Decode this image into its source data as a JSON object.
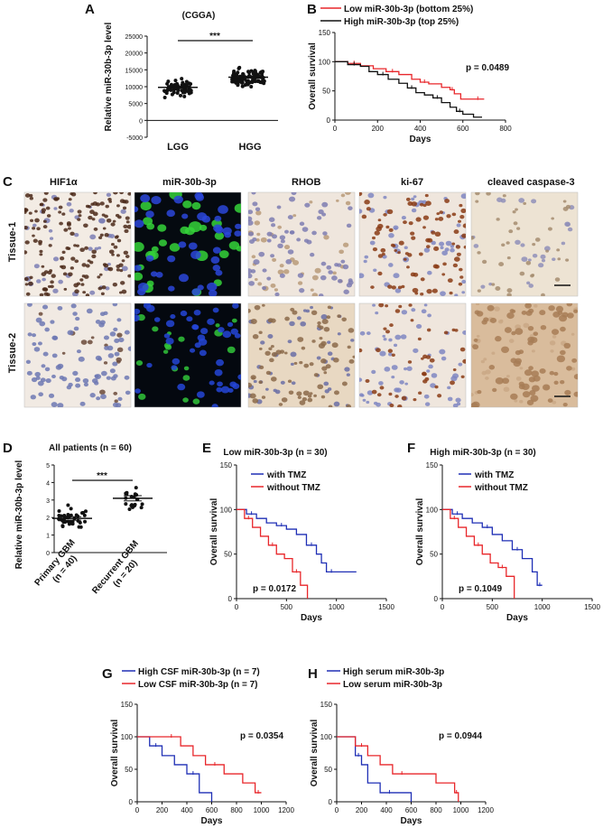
{
  "panel_letters": {
    "A": "A",
    "B": "B",
    "C": "C",
    "D": "D",
    "E": "E",
    "F": "F",
    "G": "G",
    "H": "H"
  },
  "colors": {
    "red": "#e8262a",
    "blue": "#1f2fb5",
    "black": "#111111"
  },
  "panelA": {
    "title": "(CGGA)",
    "ylabel": "Relative miR-30b-3p level",
    "sig": "***",
    "yticks": [
      "25000",
      "20000",
      "15000",
      "10000",
      "5000",
      "0",
      "-5000"
    ],
    "groups": [
      "LGG",
      "HGG"
    ]
  },
  "panelB": {
    "legend": [
      "Low miR-30b-3p (bottom 25%)",
      "High miR-30b-3p (top 25%)"
    ],
    "p": "p = 0.0489",
    "ylabel": "Overall survival",
    "xlabel": "Days",
    "yticks": [
      "0",
      "50",
      "100",
      "150"
    ],
    "xticks": [
      "0",
      "200",
      "400",
      "600",
      "800"
    ]
  },
  "panelC": {
    "columns": [
      "HIF1α",
      "miR-30b-3p",
      "RHOB",
      "ki-67",
      "cleaved caspase-3"
    ],
    "rows": [
      "Tissue-1",
      "Tissue-2"
    ]
  },
  "panelD": {
    "title": "All patients (n = 60)",
    "ylabel": "Relative miR-30b-3p level",
    "sig": "***",
    "yticks": [
      "0",
      "1",
      "2",
      "3",
      "4",
      "5"
    ],
    "groups": [
      [
        "Primary GBM",
        "(n = 40)"
      ],
      [
        "Recurrent GBM",
        "(n = 20)"
      ]
    ]
  },
  "panelE": {
    "title": "Low miR-30b-3p (n = 30)",
    "legend": [
      "with TMZ",
      "without TMZ"
    ],
    "p": "p = 0.0172",
    "ylabel": "Overall survival",
    "xlabel": "Days",
    "yticks": [
      "0",
      "50",
      "100",
      "150"
    ],
    "xticks": [
      "0",
      "500",
      "1000",
      "1500"
    ]
  },
  "panelF": {
    "title": "High miR-30b-3p (n = 30)",
    "legend": [
      "with TMZ",
      "without TMZ"
    ],
    "p": "p = 0.1049",
    "ylabel": "Overall survival",
    "xlabel": "Days",
    "yticks": [
      "0",
      "50",
      "100",
      "150"
    ],
    "xticks": [
      "0",
      "500",
      "1000",
      "1500"
    ]
  },
  "panelG": {
    "legend": [
      "High CSF miR-30b-3p (n = 7)",
      "Low CSF miR-30b-3p (n = 7)"
    ],
    "p": "p = 0.0354",
    "ylabel": "Overall survival",
    "xlabel": "Days",
    "yticks": [
      "0",
      "50",
      "100",
      "150"
    ],
    "xticks": [
      "0",
      "200",
      "400",
      "600",
      "800",
      "1000",
      "1200"
    ]
  },
  "panelH": {
    "legend": [
      "High serum miR-30b-3p",
      "Low serum miR-30b-3p"
    ],
    "p": "p = 0.0944",
    "ylabel": "Overall survival",
    "xlabel": "Days",
    "yticks": [
      "0",
      "50",
      "100",
      "150"
    ],
    "xticks": [
      "0",
      "200",
      "400",
      "600",
      "800",
      "1000",
      "1200"
    ]
  },
  "chart_data": [
    {
      "panel": "A",
      "type": "scatter",
      "title": "(CGGA)",
      "ylabel": "Relative miR-30b-3p level",
      "categories": [
        "LGG",
        "HGG"
      ],
      "ylim": [
        -5000,
        25000
      ],
      "means": [
        9800,
        12800
      ],
      "n_approx": [
        60,
        100
      ]
    },
    {
      "panel": "B",
      "type": "line",
      "xlabel": "Days",
      "ylabel": "Overall survival",
      "xlim": [
        0,
        800
      ],
      "ylim": [
        0,
        150
      ],
      "series": [
        {
          "name": "Low miR-30b-3p (bottom 25%)",
          "x": [
            0,
            60,
            120,
            180,
            240,
            300,
            360,
            400,
            440,
            500,
            540,
            560,
            590,
            640,
            700
          ],
          "y": [
            100,
            97,
            93,
            88,
            83,
            78,
            70,
            65,
            62,
            56,
            52,
            45,
            36,
            36,
            36
          ]
        },
        {
          "name": "High miR-30b-3p (top 25%)",
          "x": [
            0,
            60,
            120,
            160,
            200,
            250,
            300,
            340,
            380,
            420,
            460,
            500,
            540,
            570,
            600,
            650,
            690
          ],
          "y": [
            100,
            95,
            92,
            83,
            78,
            70,
            63,
            55,
            47,
            43,
            38,
            30,
            22,
            15,
            10,
            5,
            5
          ]
        }
      ]
    },
    {
      "panel": "D",
      "type": "scatter",
      "title": "All patients (n = 60)",
      "ylabel": "Relative miR-30b-3p level",
      "categories": [
        "Primary GBM (n = 40)",
        "Recurrent GBM (n = 20)"
      ],
      "ylim": [
        0,
        5
      ],
      "means": [
        1.95,
        3.1
      ]
    },
    {
      "panel": "E",
      "type": "line",
      "title": "Low miR-30b-3p (n = 30)",
      "xlabel": "Days",
      "ylabel": "Overall survival",
      "xlim": [
        0,
        1500
      ],
      "ylim": [
        0,
        150
      ],
      "series": [
        {
          "name": "with TMZ",
          "x": [
            0,
            100,
            200,
            300,
            400,
            500,
            600,
            700,
            800,
            850,
            900,
            1000,
            1200
          ],
          "y": [
            100,
            95,
            90,
            85,
            82,
            78,
            72,
            60,
            50,
            40,
            30,
            30,
            30
          ]
        },
        {
          "name": "without TMZ",
          "x": [
            0,
            80,
            160,
            240,
            320,
            400,
            480,
            560,
            640,
            700,
            710
          ],
          "y": [
            100,
            90,
            80,
            70,
            60,
            50,
            45,
            30,
            15,
            15,
            0
          ]
        }
      ]
    },
    {
      "panel": "F",
      "type": "line",
      "title": "High miR-30b-3p (n = 30)",
      "xlabel": "Days",
      "ylabel": "Overall survival",
      "xlim": [
        0,
        1500
      ],
      "ylim": [
        0,
        150
      ],
      "series": [
        {
          "name": "with TMZ",
          "x": [
            0,
            100,
            200,
            300,
            400,
            500,
            600,
            700,
            800,
            900,
            950,
            1000
          ],
          "y": [
            100,
            95,
            90,
            85,
            80,
            72,
            65,
            55,
            45,
            30,
            15,
            15
          ]
        },
        {
          "name": "without TMZ",
          "x": [
            0,
            80,
            160,
            240,
            320,
            400,
            480,
            560,
            640,
            700,
            720
          ],
          "y": [
            100,
            90,
            80,
            70,
            60,
            50,
            40,
            35,
            25,
            25,
            0
          ]
        }
      ]
    },
    {
      "panel": "G",
      "type": "line",
      "xlabel": "Days",
      "ylabel": "Overall survival",
      "xlim": [
        0,
        1200
      ],
      "ylim": [
        0,
        150
      ],
      "series": [
        {
          "name": "High CSF miR-30b-3p (n = 7)",
          "x": [
            0,
            100,
            200,
            300,
            400,
            500,
            600
          ],
          "y": [
            100,
            86,
            71,
            57,
            43,
            14,
            0
          ]
        },
        {
          "name": "Low CSF miR-30b-3p (n = 7)",
          "x": [
            0,
            200,
            350,
            450,
            550,
            700,
            850,
            950,
            1000
          ],
          "y": [
            100,
            100,
            86,
            71,
            57,
            43,
            29,
            14,
            14
          ]
        }
      ]
    },
    {
      "panel": "H",
      "type": "line",
      "xlabel": "Days",
      "ylabel": "Overall survival",
      "xlim": [
        0,
        1200
      ],
      "ylim": [
        0,
        150
      ],
      "series": [
        {
          "name": "High serum miR-30b-3p",
          "x": [
            0,
            150,
            200,
            250,
            350,
            500,
            600
          ],
          "y": [
            100,
            71,
            57,
            29,
            14,
            14,
            0
          ]
        },
        {
          "name": "Low serum miR-30b-3p",
          "x": [
            0,
            150,
            250,
            350,
            450,
            600,
            800,
            950,
            980
          ],
          "y": [
            100,
            86,
            71,
            57,
            43,
            43,
            29,
            14,
            0
          ]
        }
      ]
    }
  ]
}
